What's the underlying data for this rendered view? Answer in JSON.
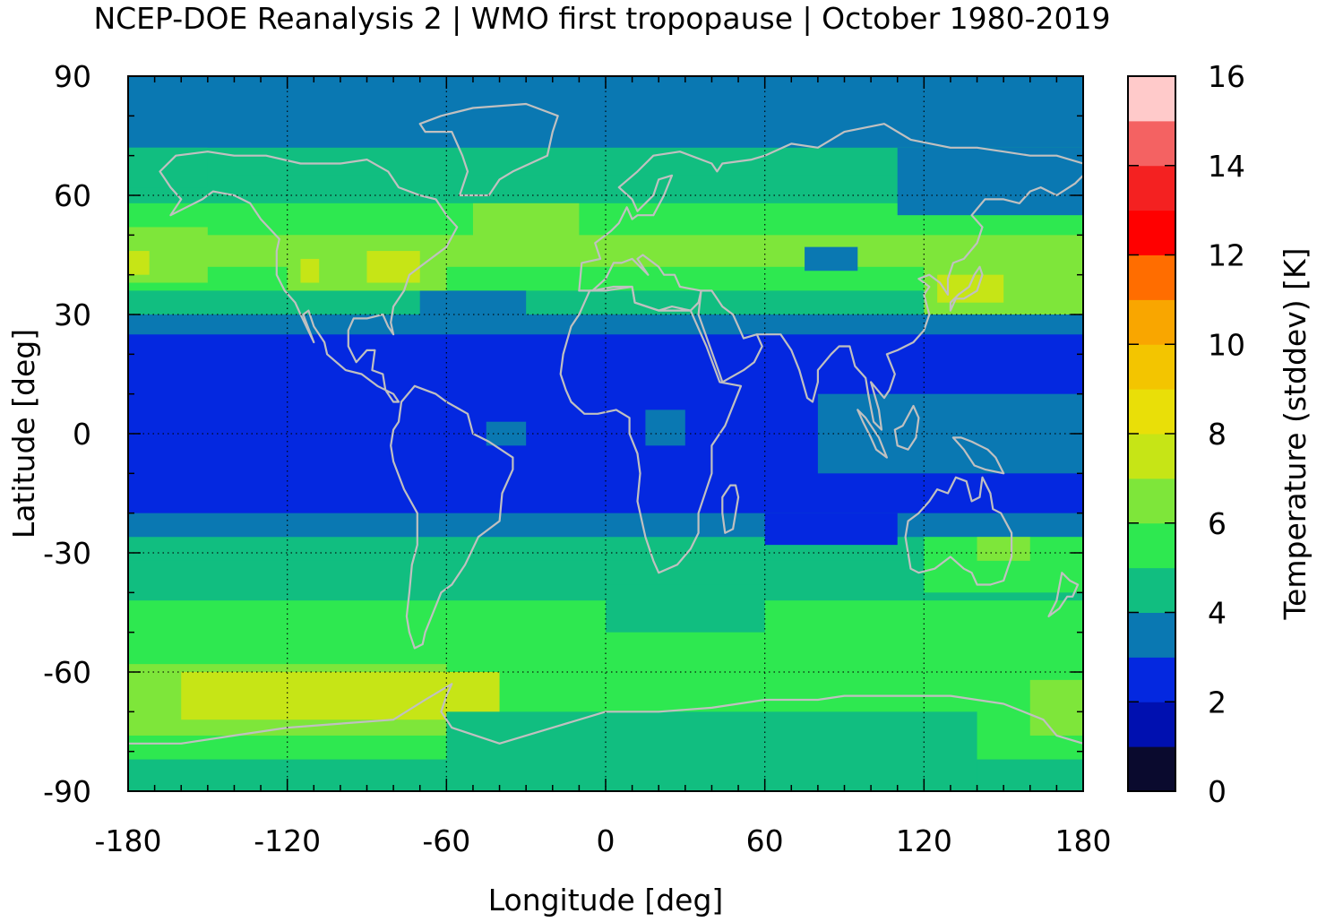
{
  "chart_data": {
    "type": "heatmap",
    "title": "NCEP-DOE Reanalysis 2 | WMO first tropopause | October 1980-2019",
    "xlabel": "Longitude [deg]",
    "ylabel": "Latitude [deg]",
    "colorbar_label": "Temperature (stddev) [K]",
    "xlim": [
      -180,
      180
    ],
    "ylim": [
      -90,
      90
    ],
    "x_ticks": [
      -180,
      -120,
      -60,
      0,
      60,
      120,
      180
    ],
    "x_tick_labels": [
      "-180",
      "-120",
      "-60",
      "0",
      "60",
      "120",
      "180"
    ],
    "y_ticks": [
      90,
      60,
      30,
      0,
      -30,
      -60,
      -90
    ],
    "y_tick_labels": [
      "90",
      "60",
      "30",
      "0",
      "-30",
      "-60",
      "-90"
    ],
    "colorbar_range": [
      0,
      16
    ],
    "colorbar_ticks": [
      0,
      2,
      4,
      6,
      8,
      10,
      12,
      14,
      16
    ],
    "colorbar_tick_labels": [
      "0",
      "2",
      "4",
      "6",
      "8",
      "10",
      "12",
      "14",
      "16"
    ],
    "color_levels": [
      {
        "min": 0,
        "max": 1,
        "color": "#0a0a2e"
      },
      {
        "min": 1,
        "max": 2,
        "color": "#0010b0"
      },
      {
        "min": 2,
        "max": 3,
        "color": "#0428e0"
      },
      {
        "min": 3,
        "max": 4,
        "color": "#0a78b2"
      },
      {
        "min": 4,
        "max": 5,
        "color": "#11be80"
      },
      {
        "min": 5,
        "max": 6,
        "color": "#2ee850"
      },
      {
        "min": 6,
        "max": 7,
        "color": "#7ee63a"
      },
      {
        "min": 7,
        "max": 8,
        "color": "#c6e516"
      },
      {
        "min": 8,
        "max": 9,
        "color": "#e9df08"
      },
      {
        "min": 9,
        "max": 10,
        "color": "#f3c500"
      },
      {
        "min": 10,
        "max": 11,
        "color": "#f9a600"
      },
      {
        "min": 11,
        "max": 12,
        "color": "#ff6d00"
      },
      {
        "min": 12,
        "max": 13,
        "color": "#ff0000"
      },
      {
        "min": 13,
        "max": 14,
        "color": "#f42121"
      },
      {
        "min": 14,
        "max": 15,
        "color": "#f46262"
      },
      {
        "min": 15,
        "max": 16,
        "color": "#ffcaca"
      }
    ],
    "zonal_bands": [
      {
        "lat_min": 80,
        "lat_max": 90,
        "value": 3.5
      },
      {
        "lat_min": 72,
        "lat_max": 80,
        "value": 3.5
      },
      {
        "lat_min": 65,
        "lat_max": 72,
        "value": 4.5
      },
      {
        "lat_min": 58,
        "lat_max": 65,
        "value": 4.5
      },
      {
        "lat_min": 50,
        "lat_max": 58,
        "value": 5.5
      },
      {
        "lat_min": 42,
        "lat_max": 50,
        "value": 6.5
      },
      {
        "lat_min": 36,
        "lat_max": 42,
        "value": 5.5
      },
      {
        "lat_min": 30,
        "lat_max": 36,
        "value": 4.5
      },
      {
        "lat_min": 25,
        "lat_max": 30,
        "value": 3.5
      },
      {
        "lat_min": -20,
        "lat_max": 25,
        "value": 2.5
      },
      {
        "lat_min": -26,
        "lat_max": -20,
        "value": 3.5
      },
      {
        "lat_min": -32,
        "lat_max": -26,
        "value": 4.5
      },
      {
        "lat_min": -42,
        "lat_max": -32,
        "value": 4.5
      },
      {
        "lat_min": -52,
        "lat_max": -42,
        "value": 5.5
      },
      {
        "lat_min": -58,
        "lat_max": -52,
        "value": 5.5
      },
      {
        "lat_min": -72,
        "lat_max": -58,
        "value": 5.5
      },
      {
        "lat_min": -82,
        "lat_max": -72,
        "value": 5.5
      },
      {
        "lat_min": -90,
        "lat_max": -82,
        "value": 4.5
      }
    ],
    "regional_anomalies": [
      {
        "lon_min": -180,
        "lon_max": 180,
        "lat_min": 25,
        "lat_max": 30,
        "value": 3.5
      },
      {
        "lon_min": -180,
        "lon_max": -150,
        "lat_min": 62,
        "lat_max": 72,
        "value": 4.5
      },
      {
        "lon_min": -70,
        "lon_max": -30,
        "lat_min": 30,
        "lat_max": 36,
        "value": 3.5
      },
      {
        "lon_min": -180,
        "lon_max": -150,
        "lat_min": 38,
        "lat_max": 52,
        "value": 6.5
      },
      {
        "lon_min": -180,
        "lon_max": -172,
        "lat_min": 40,
        "lat_max": 46,
        "value": 7.5
      },
      {
        "lon_min": -120,
        "lon_max": -60,
        "lat_min": 36,
        "lat_max": 50,
        "value": 6.5
      },
      {
        "lon_min": -90,
        "lon_max": -70,
        "lat_min": 38,
        "lat_max": 46,
        "value": 7.5
      },
      {
        "lon_min": -115,
        "lon_max": -108,
        "lat_min": 38,
        "lat_max": 44,
        "value": 7.5
      },
      {
        "lon_min": -50,
        "lon_max": -10,
        "lat_min": 44,
        "lat_max": 58,
        "value": 6.5
      },
      {
        "lon_min": 120,
        "lon_max": 180,
        "lat_min": 30,
        "lat_max": 44,
        "value": 6.5
      },
      {
        "lon_min": 125,
        "lon_max": 150,
        "lat_min": 33,
        "lat_max": 40,
        "value": 7.5
      },
      {
        "lon_min": 110,
        "lon_max": 180,
        "lat_min": 55,
        "lat_max": 72,
        "value": 3.5
      },
      {
        "lon_min": 75,
        "lon_max": 95,
        "lat_min": 41,
        "lat_max": 47,
        "value": 3.5
      },
      {
        "lon_min": 80,
        "lon_max": 180,
        "lat_min": -10,
        "lat_max": 10,
        "value": 3.5
      },
      {
        "lon_min": -45,
        "lon_max": -30,
        "lat_min": -3,
        "lat_max": 3,
        "value": 3.5
      },
      {
        "lon_min": 15,
        "lon_max": 30,
        "lat_min": -3,
        "lat_max": 6,
        "value": 3.5
      },
      {
        "lon_min": 60,
        "lon_max": 110,
        "lat_min": -28,
        "lat_max": -20,
        "value": 2.5
      },
      {
        "lon_min": 120,
        "lon_max": 180,
        "lat_min": -40,
        "lat_max": -26,
        "value": 5.5
      },
      {
        "lon_min": 140,
        "lon_max": 160,
        "lat_min": -32,
        "lat_max": -26,
        "value": 6.5
      },
      {
        "lon_min": 0,
        "lon_max": 60,
        "lat_min": -50,
        "lat_max": -38,
        "value": 4.5
      },
      {
        "lon_min": -180,
        "lon_max": -60,
        "lat_min": -76,
        "lat_max": -58,
        "value": 6.5
      },
      {
        "lon_min": -160,
        "lon_max": -40,
        "lat_min": -72,
        "lat_max": -60,
        "value": 7.5
      },
      {
        "lon_min": -60,
        "lon_max": 140,
        "lat_min": -90,
        "lat_max": -70,
        "value": 4.5
      },
      {
        "lon_min": 160,
        "lon_max": 180,
        "lat_min": -76,
        "lat_max": -62,
        "value": 6.5
      }
    ]
  }
}
